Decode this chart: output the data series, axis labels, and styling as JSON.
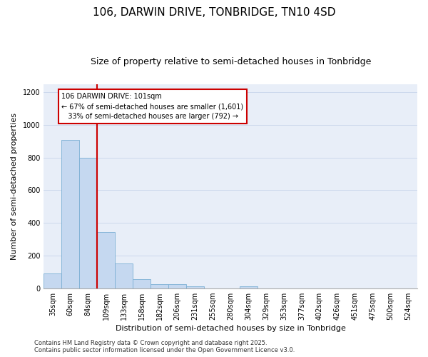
{
  "title1": "106, DARWIN DRIVE, TONBRIDGE, TN10 4SD",
  "title2": "Size of property relative to semi-detached houses in Tonbridge",
  "xlabel": "Distribution of semi-detached houses by size in Tonbridge",
  "ylabel": "Number of semi-detached properties",
  "categories": [
    "35sqm",
    "60sqm",
    "84sqm",
    "109sqm",
    "133sqm",
    "158sqm",
    "182sqm",
    "206sqm",
    "231sqm",
    "255sqm",
    "280sqm",
    "304sqm",
    "329sqm",
    "353sqm",
    "377sqm",
    "402sqm",
    "426sqm",
    "451sqm",
    "475sqm",
    "500sqm",
    "524sqm"
  ],
  "values": [
    90,
    910,
    800,
    345,
    150,
    55,
    27,
    25,
    10,
    0,
    0,
    12,
    0,
    0,
    0,
    0,
    0,
    0,
    0,
    0,
    0
  ],
  "bar_color": "#c5d8f0",
  "bar_edge_color": "#7bafd4",
  "vline_x": 2.5,
  "vline_color": "#cc0000",
  "annotation_text": "106 DARWIN DRIVE: 101sqm\n← 67% of semi-detached houses are smaller (1,601)\n   33% of semi-detached houses are larger (792) →",
  "annotation_box_color": "#cc0000",
  "ylim": [
    0,
    1250
  ],
  "yticks": [
    0,
    200,
    400,
    600,
    800,
    1000,
    1200
  ],
  "grid_color": "#ccd8ec",
  "bg_color": "#e8eef8",
  "footer": "Contains HM Land Registry data © Crown copyright and database right 2025.\nContains public sector information licensed under the Open Government Licence v3.0.",
  "title_fontsize": 11,
  "subtitle_fontsize": 9,
  "annotation_fontsize": 7,
  "footer_fontsize": 6,
  "xlabel_fontsize": 8,
  "ylabel_fontsize": 8,
  "tick_fontsize": 7
}
